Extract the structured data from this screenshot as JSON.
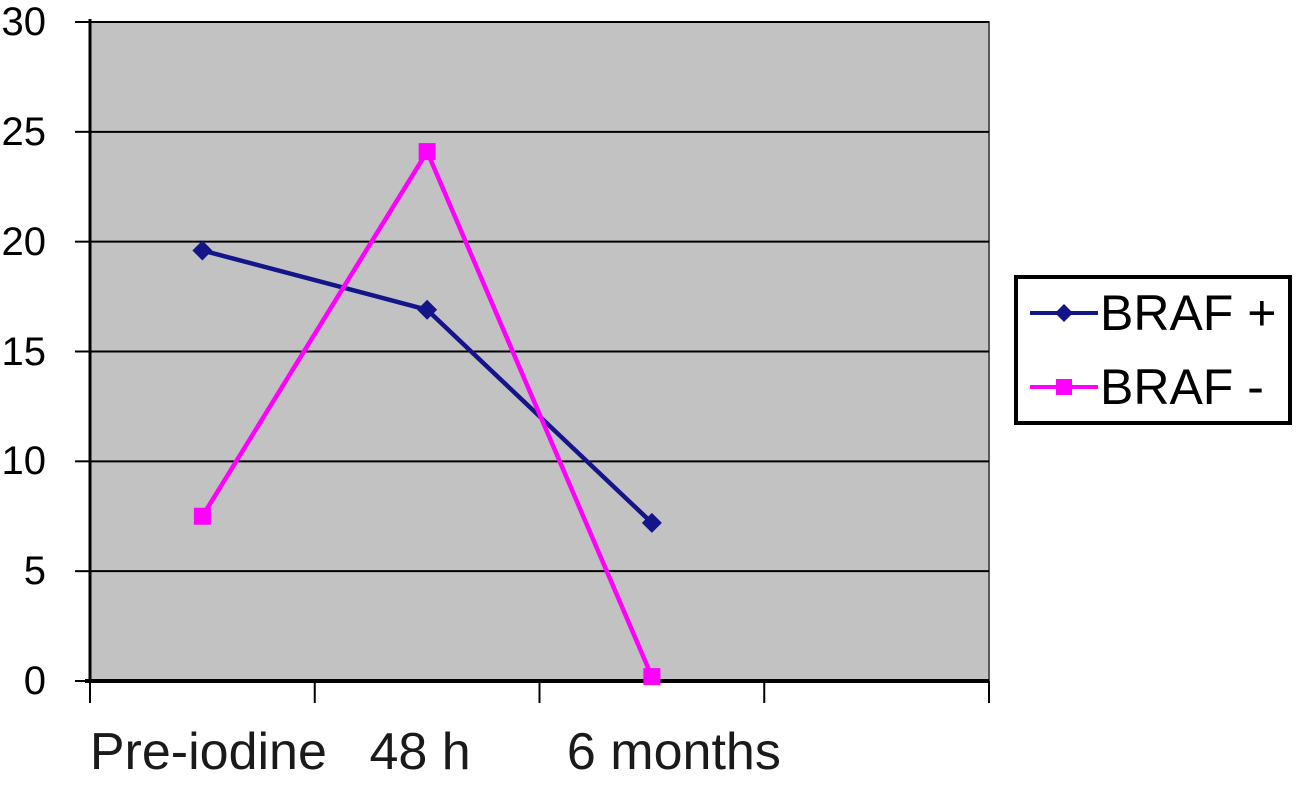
{
  "page": {
    "background_color": "#ffffff"
  },
  "chart_data": {
    "type": "line",
    "title": "",
    "xlabel": "",
    "ylabel": "",
    "categories": [
      "Pre-iodine",
      "48 h",
      "6 months"
    ],
    "x_slots": 4,
    "series": [
      {
        "name": "BRAF +",
        "values": [
          19.6,
          16.9,
          7.2
        ],
        "color": "#15158a",
        "marker": "diamond"
      },
      {
        "name": "BRAF -",
        "values": [
          7.5,
          24.1,
          0.2
        ],
        "color": "#ff00ff",
        "marker": "square"
      }
    ],
    "ylim": [
      0,
      30
    ],
    "yticks": [
      0,
      5,
      10,
      15,
      20,
      25,
      30
    ],
    "grid": true,
    "gridline_color": "#000000",
    "axis_color": "#000000",
    "plot_bg_color": "#c2c2c2",
    "plot_border_color": "#5a5a5a",
    "legend": {
      "position": "right",
      "border_color": "#000000",
      "bg_color": "#ffffff"
    }
  }
}
